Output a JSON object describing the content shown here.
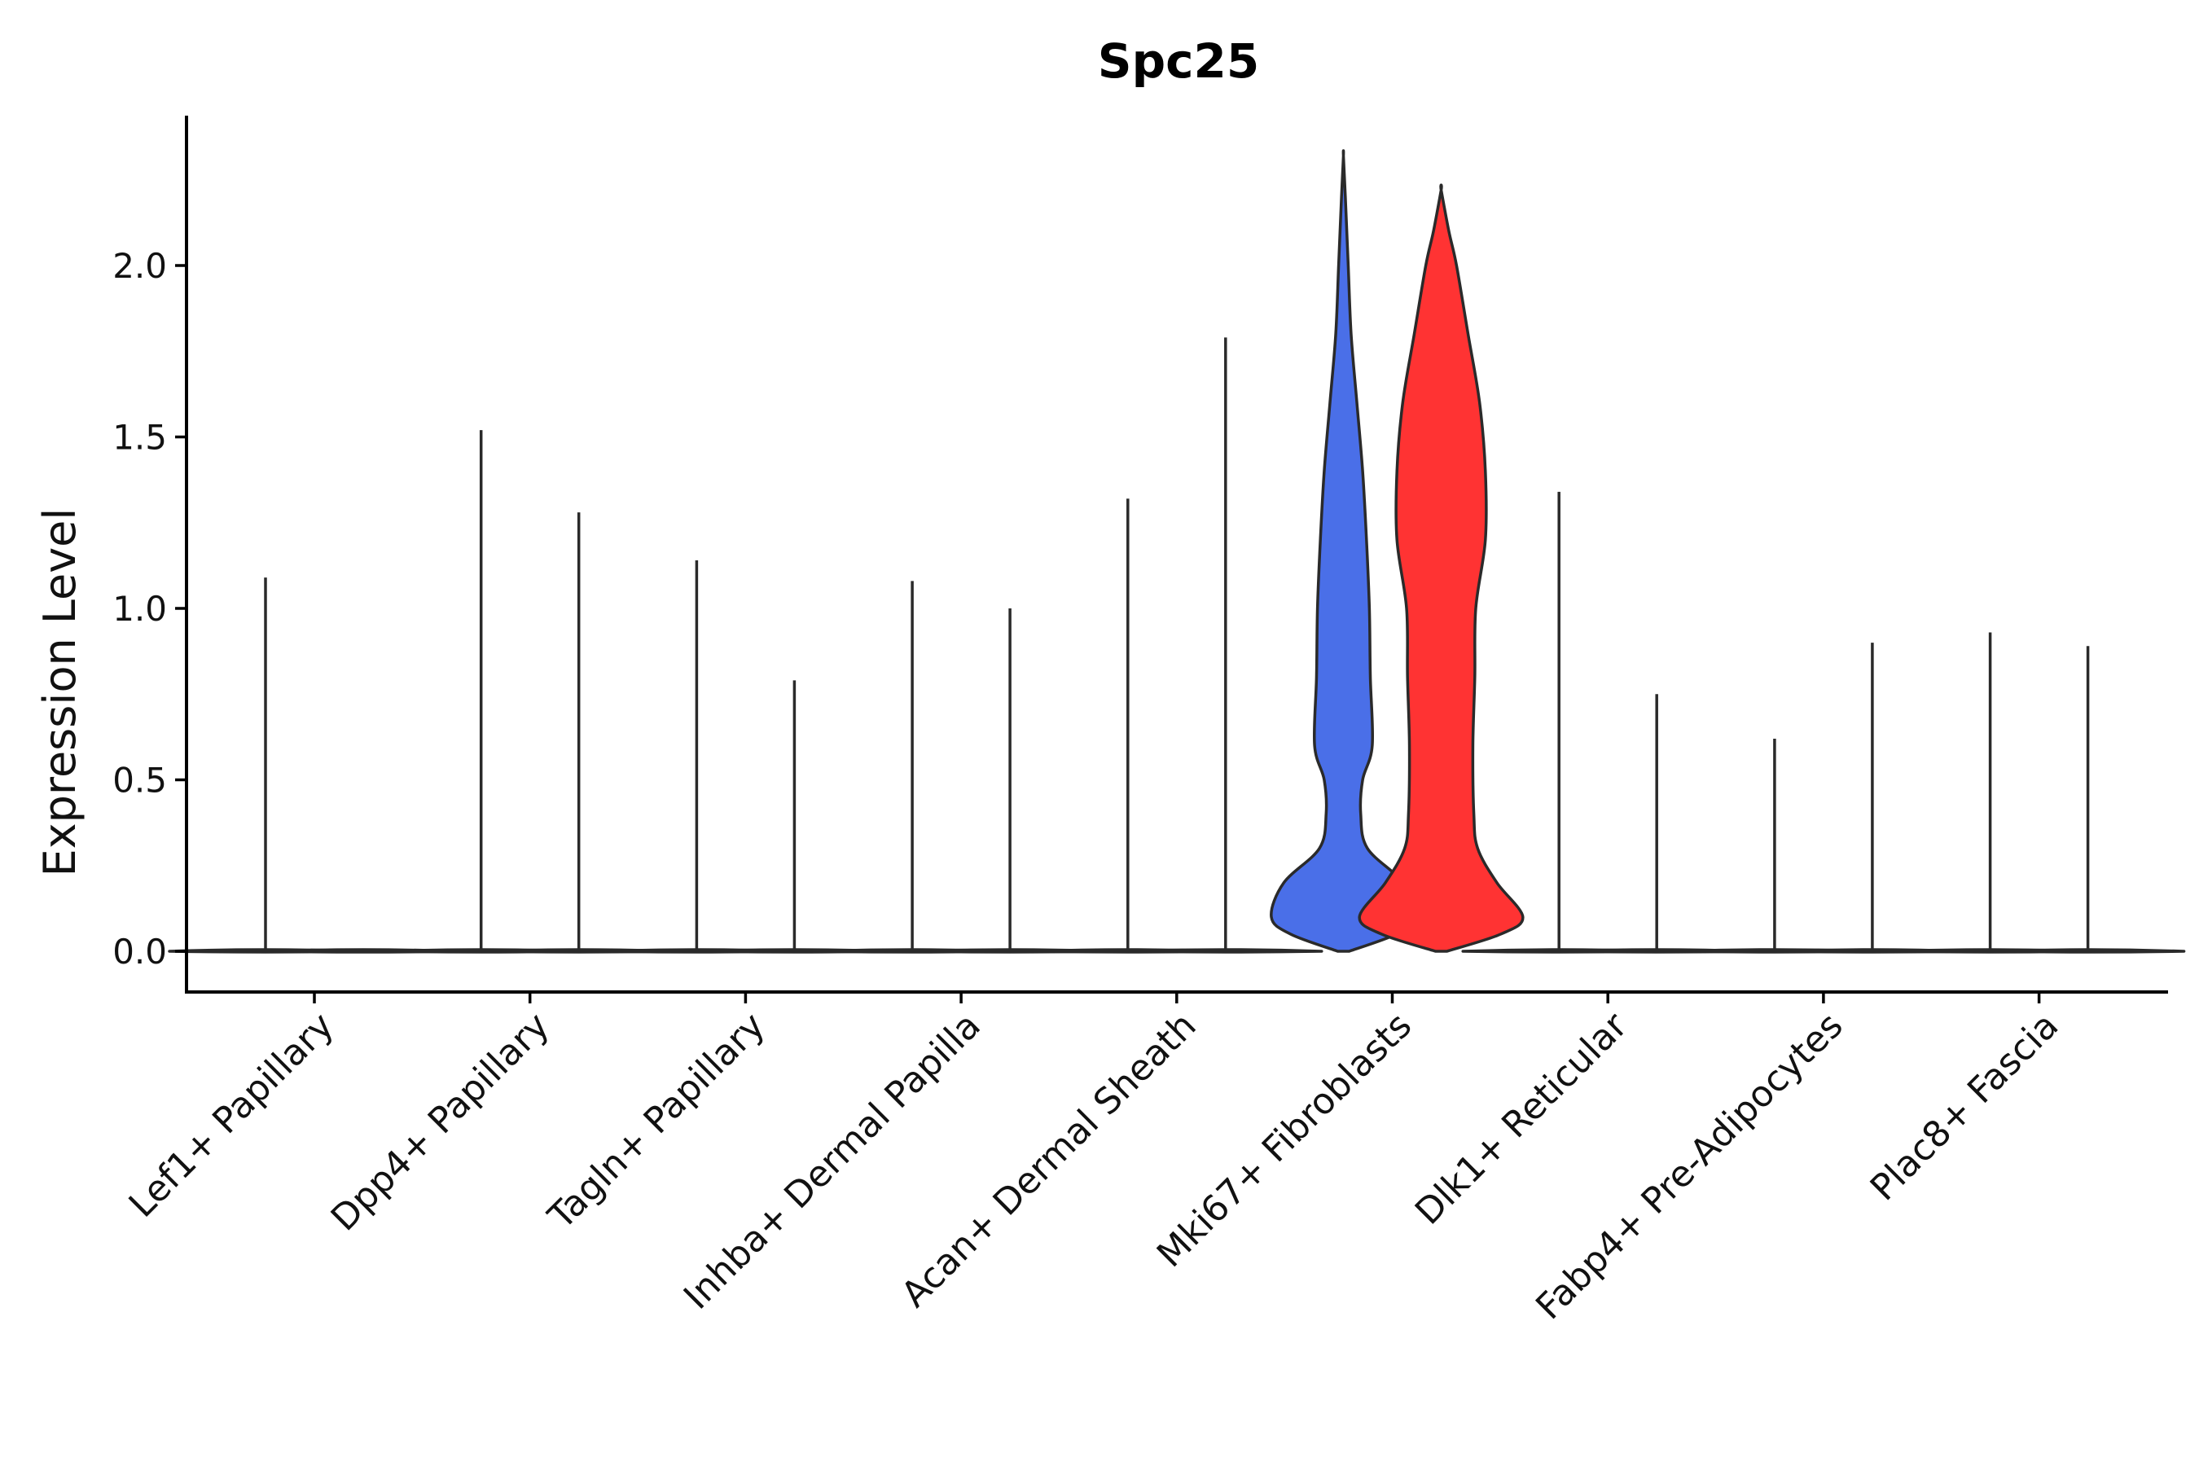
{
  "chart_data": {
    "type": "violin",
    "title": "Spc25",
    "xlabel": "",
    "ylabel": "Expression Level",
    "ylim": [
      -0.12,
      2.4
    ],
    "yticks": [
      0.0,
      0.5,
      1.0,
      1.5,
      2.0
    ],
    "ytick_labels": [
      "0.0",
      "0.5",
      "1.0",
      "1.5",
      "2.0"
    ],
    "categories": [
      "Lef1+ Papillary",
      "Dpp4+ Papillary",
      "Tagln+ Papillary",
      "Inhba+ Dermal Papilla",
      "Acan+ Dermal Sheath",
      "Mki67+ Fibroblasts",
      "Dlk1+ Reticular",
      "Fabp4+ Pre-Adipocytes",
      "Plac8+ Fascia"
    ],
    "groups": [
      "left",
      "right"
    ],
    "series": [
      {
        "name": "left",
        "max_values": [
          1.09,
          1.52,
          1.14,
          1.08,
          1.32,
          2.32,
          1.34,
          0.62,
          0.93
        ],
        "color": "#000000"
      },
      {
        "name": "right",
        "max_values": [
          0.0,
          1.28,
          0.79,
          1.0,
          1.79,
          2.22,
          0.75,
          0.9,
          0.89
        ],
        "color": "#000000"
      }
    ],
    "highlight": {
      "category": "Mki67+ Fibroblasts",
      "left_color": "#4a6fe8",
      "right_color": "#ff3333",
      "left_profile": [
        [
          0.0,
          0.06
        ],
        [
          0.05,
          0.55
        ],
        [
          0.1,
          0.75
        ],
        [
          0.2,
          0.62
        ],
        [
          0.3,
          0.25
        ],
        [
          0.4,
          0.18
        ],
        [
          0.5,
          0.2
        ],
        [
          0.6,
          0.3
        ],
        [
          0.8,
          0.28
        ],
        [
          1.0,
          0.27
        ],
        [
          1.2,
          0.24
        ],
        [
          1.4,
          0.2
        ],
        [
          1.6,
          0.14
        ],
        [
          1.8,
          0.08
        ],
        [
          2.0,
          0.05
        ],
        [
          2.2,
          0.02
        ],
        [
          2.32,
          0.0
        ]
      ],
      "right_profile": [
        [
          0.0,
          0.06
        ],
        [
          0.05,
          0.62
        ],
        [
          0.1,
          0.85
        ],
        [
          0.2,
          0.58
        ],
        [
          0.3,
          0.38
        ],
        [
          0.4,
          0.34
        ],
        [
          0.6,
          0.33
        ],
        [
          0.8,
          0.35
        ],
        [
          1.0,
          0.36
        ],
        [
          1.2,
          0.46
        ],
        [
          1.4,
          0.46
        ],
        [
          1.6,
          0.4
        ],
        [
          1.8,
          0.28
        ],
        [
          2.0,
          0.16
        ],
        [
          2.1,
          0.08
        ],
        [
          2.22,
          0.0
        ]
      ]
    }
  }
}
